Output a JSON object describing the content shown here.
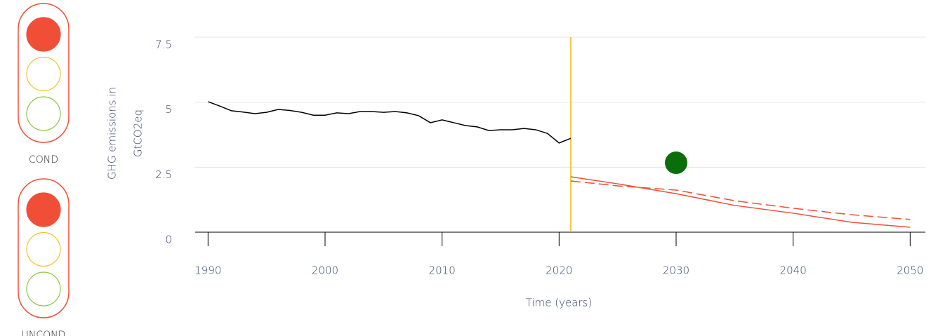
{
  "traffic_lights": {
    "colors": [
      "#f04e37",
      "#f2c12e",
      "#8cc63f"
    ],
    "items": [
      {
        "label": "COND",
        "active": 0
      },
      {
        "label": "UNCOND",
        "active": 0
      }
    ]
  },
  "chart_data": {
    "type": "line",
    "xlabel": "Time (years)",
    "ylabel": [
      "GHG emissions in",
      "GtCO2eq"
    ],
    "xlim": [
      1988.9,
      2051.3
    ],
    "xticks": [
      1990,
      2000,
      2010,
      2020,
      2030,
      2040,
      2050
    ],
    "ylim": [
      0,
      7.5
    ],
    "yticks": [
      0,
      2.5,
      5,
      7.5
    ],
    "grid": true,
    "series": [
      {
        "color": "#000000",
        "dash": false,
        "x": [
          1990,
          1991,
          1992,
          1993,
          1994,
          1995,
          1996,
          1997,
          1998,
          1999,
          2000,
          2001,
          2002,
          2003,
          2004,
          2005,
          2006,
          2007,
          2008,
          2009,
          2010,
          2011,
          2012,
          2013,
          2014,
          2015,
          2016,
          2017,
          2018,
          2019,
          2020,
          2021
        ],
        "values": [
          5.02,
          4.85,
          4.67,
          4.62,
          4.56,
          4.61,
          4.72,
          4.68,
          4.61,
          4.5,
          4.5,
          4.59,
          4.56,
          4.64,
          4.64,
          4.61,
          4.64,
          4.59,
          4.48,
          4.21,
          4.32,
          4.21,
          4.1,
          4.05,
          3.91,
          3.94,
          3.94,
          3.99,
          3.94,
          3.8,
          3.43,
          3.61
        ]
      },
      {
        "color": "#f04e37",
        "dash": false,
        "x": [
          2021,
          2025,
          2030,
          2035,
          2040,
          2045,
          2050
        ],
        "values": [
          2.13,
          1.86,
          1.48,
          1.03,
          0.73,
          0.38,
          0.19
        ]
      },
      {
        "color": "#f04e37",
        "dash": true,
        "x": [
          2021,
          2025,
          2030,
          2035,
          2040,
          2045,
          2050
        ],
        "values": [
          1.97,
          1.78,
          1.62,
          1.21,
          0.92,
          0.67,
          0.49
        ]
      }
    ],
    "reference_x": {
      "value": 2021,
      "color": "#f5b400"
    },
    "target": {
      "x": 2030,
      "value": 2.67,
      "color": "#0a6e0a"
    }
  }
}
